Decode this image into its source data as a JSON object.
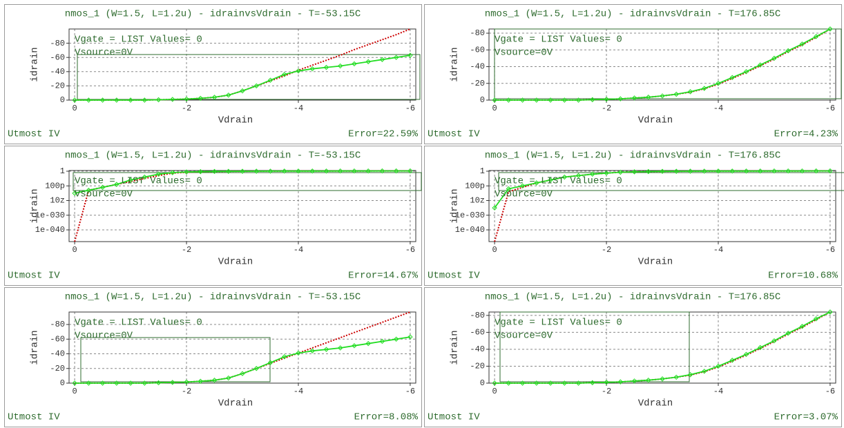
{
  "chart_data": [
    {
      "type": "line",
      "title": "nmos_1 (W=1.5, L=1.2u) - idrainvsVdrain - T=-53.15C",
      "ylabel": "idrain",
      "xlabel": "Vdrain",
      "annotations": [
        "Vgate = LIST Values= 0",
        "Vsource=0V"
      ],
      "footer_left": "Utmost IV",
      "footer_right": "Error=22.59%",
      "x": [
        0,
        -0.25,
        -0.5,
        -0.75,
        -1,
        -1.25,
        -1.5,
        -1.75,
        -2,
        -2.25,
        -2.5,
        -2.75,
        -3,
        -3.25,
        -3.5,
        -3.75,
        -4,
        -4.25,
        -4.5,
        -4.75,
        -5,
        -5.25,
        -5.5,
        -5.75,
        -6
      ],
      "series": [
        {
          "color": "#22dd22",
          "values": [
            0,
            0,
            0,
            0,
            0,
            0,
            -0.5,
            -1,
            -1.5,
            -2.5,
            -4,
            -7,
            -13,
            -20,
            -28,
            -36,
            -41,
            -44,
            -46,
            -48,
            -51,
            -54,
            -57,
            -60,
            -63
          ]
        },
        {
          "color": "#cc0000",
          "values": [
            0,
            0,
            0,
            0,
            0,
            0,
            -0.5,
            -1,
            -1.5,
            -2.5,
            -4,
            -7,
            -13,
            -20,
            -27,
            -34,
            -42,
            -49,
            -56,
            -63,
            -71,
            -78,
            -85,
            -92,
            -100
          ]
        }
      ],
      "xlim": [
        0.1,
        -6.1
      ],
      "xticks": [
        0,
        -2,
        -4,
        -6
      ],
      "ylim": [
        0,
        -100
      ],
      "yticks": [
        0,
        -20,
        -40,
        -60,
        -80
      ],
      "yscale": "linear",
      "grid": true
    },
    {
      "type": "line",
      "title": "nmos_1 (W=1.5, L=1.2u) - idrainvsVdrain - T=176.85C",
      "ylabel": "idrain",
      "xlabel": "Vdrain",
      "annotations": [
        "Vgate = LIST Values= 0",
        "Vsource=0V"
      ],
      "footer_left": "Utmost IV",
      "footer_right": "Error=4.23%",
      "x": [
        0,
        -0.25,
        -0.5,
        -0.75,
        -1,
        -1.25,
        -1.5,
        -1.75,
        -2,
        -2.25,
        -2.5,
        -2.75,
        -3,
        -3.25,
        -3.5,
        -3.75,
        -4,
        -4.25,
        -4.5,
        -4.75,
        -5,
        -5.25,
        -5.5,
        -5.75,
        -6
      ],
      "series": [
        {
          "color": "#22dd22",
          "values": [
            0,
            0,
            0,
            0,
            0,
            0,
            0,
            -0.5,
            -1,
            -1.5,
            -2.5,
            -3.5,
            -5,
            -7,
            -10,
            -14,
            -20,
            -27,
            -34,
            -42,
            -50,
            -59,
            -67,
            -76,
            -85
          ]
        },
        {
          "color": "#cc0000",
          "values": [
            0,
            0,
            0,
            0,
            0,
            0,
            0,
            -0.5,
            -1,
            -1.5,
            -2.5,
            -3.5,
            -5,
            -7,
            -9.5,
            -13.5,
            -19,
            -26,
            -33,
            -41,
            -49,
            -58,
            -66,
            -75,
            -85
          ]
        }
      ],
      "xlim": [
        0.1,
        -6.1
      ],
      "xticks": [
        0,
        -2,
        -4,
        -6
      ],
      "ylim": [
        0,
        -85
      ],
      "yticks": [
        0,
        -20,
        -40,
        -60,
        -80
      ],
      "yscale": "linear",
      "grid": true
    },
    {
      "type": "line",
      "title": "nmos_1 (W=1.5, L=1.2u) - idrainvsVdrain - T=-53.15C",
      "ylabel": "idrain",
      "xlabel": "Vdrain",
      "annotations": [
        "Vgate = LIST Values= 0",
        "Vsource=0V"
      ],
      "footer_left": "Utmost IV",
      "footer_right": "Error=14.67%",
      "x": [
        0,
        -0.25,
        -0.5,
        -0.75,
        -1,
        -1.25,
        -1.5,
        -1.75,
        -2,
        -2.25,
        -2.5,
        -2.75,
        -3,
        -3.25,
        -3.5,
        -3.75,
        -4,
        -4.25,
        -4.5,
        -4.75,
        -5,
        -5.25,
        -5.5,
        -5.75,
        -6
      ],
      "series": [
        {
          "color": "#22dd22",
          "values": [
            1e-15,
            1e-13,
            1e-11,
            1e-09,
            1e-06,
            0.0001,
            0.01,
            0.1,
            0.3,
            0.5,
            0.7,
            0.8,
            0.9,
            1,
            1.1,
            1.2,
            1.2,
            1.3,
            1.3,
            1.4,
            1.4,
            1.4,
            1.5,
            1.5,
            1.5
          ]
        },
        {
          "color": "#cc0000",
          "values": [
            1e-48,
            1e-13,
            1e-11,
            1e-09,
            1e-07,
            1e-05,
            0.001,
            0.05,
            0.2,
            0.4,
            0.6,
            0.8,
            0.9,
            1,
            1.1,
            1.2,
            1.2,
            1.3,
            1.3,
            1.4,
            1.4,
            1.4,
            1.5,
            1.5,
            1.5
          ]
        }
      ],
      "xlim": [
        0.1,
        -6.1
      ],
      "xticks": [
        0,
        -2,
        -4,
        -6
      ],
      "ylim": [
        1e-48,
        3
      ],
      "yticks": [
        1,
        {
          "value": 1e-10,
          "label": "100p"
        },
        {
          "value": 1e-20,
          "label": "10z"
        },
        {
          "value": 1e-30,
          "label": "1e-030"
        },
        {
          "value": 1e-40,
          "label": "1e-040"
        }
      ],
      "yscale": "log",
      "grid": true
    },
    {
      "type": "line",
      "title": "nmos_1 (W=1.5, L=1.2u) - idrainvsVdrain - T=176.85C",
      "ylabel": "idrain",
      "xlabel": "Vdrain",
      "annotations": [
        "Vgate = LIST Values= 0",
        "Vsource=0V"
      ],
      "footer_left": "Utmost IV",
      "footer_right": "Error=10.68%",
      "x": [
        0,
        -0.25,
        -0.5,
        -0.75,
        -1,
        -1.25,
        -1.5,
        -1.75,
        -2,
        -2.25,
        -2.5,
        -2.75,
        -3,
        -3.25,
        -3.5,
        -3.75,
        -4,
        -4.25,
        -4.5,
        -4.75,
        -5,
        -5.25,
        -5.5,
        -5.75,
        -6
      ],
      "series": [
        {
          "color": "#22dd22",
          "values": [
            1e-25,
            1e-12,
            1e-10,
            1e-08,
            1e-06,
            0.0001,
            0.001,
            0.01,
            0.05,
            0.2,
            0.4,
            0.6,
            0.8,
            0.9,
            1,
            1.1,
            1.2,
            1.2,
            1.3,
            1.3,
            1.4,
            1.4,
            1.4,
            1.5,
            1.5
          ]
        },
        {
          "color": "#cc0000",
          "values": [
            1e-48,
            1e-14,
            1e-11,
            1e-08,
            1e-06,
            0.0001,
            0.001,
            0.01,
            0.05,
            0.2,
            0.4,
            0.6,
            0.8,
            0.9,
            1,
            1.1,
            1.2,
            1.2,
            1.3,
            1.3,
            1.4,
            1.4,
            1.4,
            1.5,
            1.5
          ]
        }
      ],
      "xlim": [
        0.1,
        -6.1
      ],
      "xticks": [
        0,
        -2,
        -4,
        -6
      ],
      "ylim": [
        1e-48,
        3
      ],
      "yticks": [
        1,
        {
          "value": 1e-10,
          "label": "100p"
        },
        {
          "value": 1e-20,
          "label": "10z"
        },
        {
          "value": 1e-30,
          "label": "1e-030"
        },
        {
          "value": 1e-40,
          "label": "1e-040"
        }
      ],
      "yscale": "log",
      "grid": true
    },
    {
      "type": "line",
      "title": "nmos_1 (W=1.5, L=1.2u) - idrainvsVdrain - T=-53.15C",
      "ylabel": "idrain",
      "xlabel": "Vdrain",
      "annotations": [
        "Vgate = LIST Values= 0",
        "Vsource=0V"
      ],
      "footer_left": "Utmost IV",
      "footer_right": "Error=8.08%",
      "x": [
        0,
        -0.25,
        -0.5,
        -0.75,
        -1,
        -1.25,
        -1.5,
        -1.75,
        -2,
        -2.25,
        -2.5,
        -2.75,
        -3,
        -3.25,
        -3.5,
        -3.75,
        -4,
        -4.25,
        -4.5,
        -4.75,
        -5,
        -5.25,
        -5.5,
        -5.75,
        -6
      ],
      "series": [
        {
          "color": "#22dd22",
          "values": [
            0,
            0,
            0,
            0,
            0,
            0,
            -0.5,
            -1,
            -1.5,
            -2.5,
            -4,
            -7,
            -13,
            -20,
            -28,
            -36,
            -41,
            -44,
            -46,
            -48,
            -51,
            -54,
            -57,
            -60,
            -63
          ]
        },
        {
          "color": "#cc0000",
          "values": [
            0,
            0,
            0,
            0,
            0,
            0,
            -0.5,
            -1,
            -1.5,
            -2.5,
            -4,
            -7,
            -13,
            -20,
            -27,
            -34,
            -41,
            -48,
            -55,
            -62,
            -69,
            -76,
            -83,
            -90,
            -97
          ]
        }
      ],
      "xlim": [
        0.1,
        -6.1
      ],
      "xticks": [
        0,
        -2,
        -4,
        -6
      ],
      "ylim": [
        0,
        -97
      ],
      "yticks": [
        0,
        -20,
        -40,
        -60,
        -80
      ],
      "yscale": "linear",
      "grid": true
    },
    {
      "type": "line",
      "title": "nmos_1 (W=1.5, L=1.2u) - idrainvsVdrain - T=176.85C",
      "ylabel": "idrain",
      "xlabel": "Vdrain",
      "annotations": [
        "Vgate = LIST Values= 0",
        "Vsource=0V"
      ],
      "footer_left": "Utmost IV",
      "footer_right": "Error=3.07%",
      "x": [
        0,
        -0.25,
        -0.5,
        -0.75,
        -1,
        -1.25,
        -1.5,
        -1.75,
        -2,
        -2.25,
        -2.5,
        -2.75,
        -3,
        -3.25,
        -3.5,
        -3.75,
        -4,
        -4.25,
        -4.5,
        -4.75,
        -5,
        -5.25,
        -5.5,
        -5.75,
        -6
      ],
      "series": [
        {
          "color": "#22dd22",
          "values": [
            0,
            0,
            0,
            0,
            0,
            0,
            0,
            -0.5,
            -1,
            -1.5,
            -2.5,
            -3.5,
            -5,
            -7,
            -10,
            -14,
            -20,
            -27,
            -34,
            -42,
            -50,
            -59,
            -67,
            -76,
            -85
          ]
        },
        {
          "color": "#cc0000",
          "values": [
            0,
            0,
            0,
            0,
            0,
            0,
            0,
            -0.5,
            -1,
            -1.5,
            -2.5,
            -3.5,
            -5,
            -7,
            -9.5,
            -13.5,
            -19,
            -26,
            -33,
            -41,
            -49,
            -58,
            -66,
            -75,
            -85
          ]
        }
      ],
      "xlim": [
        0.1,
        -6.1
      ],
      "xticks": [
        0,
        -2,
        -4,
        -6
      ],
      "ylim": [
        0,
        -84
      ],
      "yticks": [
        0,
        -20,
        -40,
        -60,
        -80
      ],
      "yscale": "linear",
      "grid": true
    }
  ]
}
